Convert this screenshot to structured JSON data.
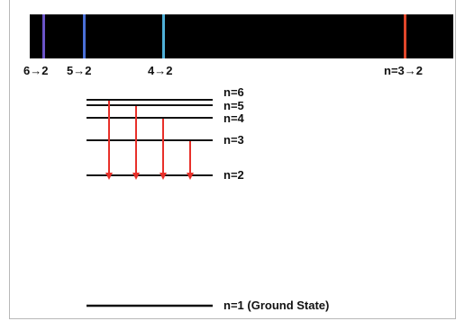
{
  "spectrum": {
    "background_color": "#000000",
    "lines": [
      {
        "transition": "6→2",
        "color": "#6a54c8"
      },
      {
        "transition": "5→2",
        "color": "#4a70d8"
      },
      {
        "transition": "4→2",
        "color": "#4fb0d8"
      },
      {
        "transition": "n=3→2",
        "color": "#e0462a"
      }
    ]
  },
  "levels": [
    {
      "label": "n=6"
    },
    {
      "label": "n=5"
    },
    {
      "label": "n=4"
    },
    {
      "label": "n=3"
    },
    {
      "label": "n=2"
    },
    {
      "label": "n=1 (Ground State)"
    }
  ],
  "arrows": {
    "color": "#e8302a",
    "transitions": [
      "6→2",
      "5→2",
      "4→2",
      "3→2"
    ]
  }
}
